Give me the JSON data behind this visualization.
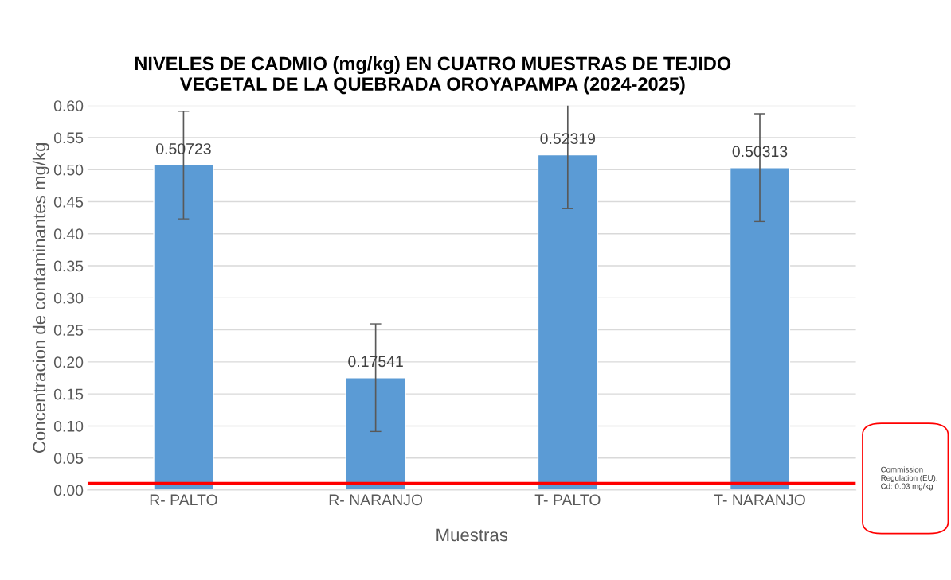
{
  "chart_data": {
    "type": "bar",
    "title": "NIVELES DE CADMIO (mg/kg) EN CUATRO MUESTRAS DE TEJIDO\nVEGETAL DE LA QUEBRADA OROYAPAMPA (2024-2025)",
    "xlabel": "Muestras",
    "ylabel": "Concentracion de contaminantes mg/kg",
    "categories": [
      "R- PALTO",
      "R- NARANJO",
      "T- PALTO",
      "T- NARANJO"
    ],
    "values": [
      0.50723,
      0.17541,
      0.52319,
      0.50313
    ],
    "errors": [
      0.084,
      0.084,
      0.084,
      0.084
    ],
    "color": "#5b9bd5",
    "data_labels": true,
    "ylim": [
      0,
      0.6
    ],
    "yticks": [
      {
        "value": 0,
        "label": "0.00"
      },
      {
        "value": 0.05,
        "label": "0.05"
      },
      {
        "value": 0.1,
        "label": "0.10"
      },
      {
        "value": 0.15,
        "label": "0.15"
      },
      {
        "value": 0.2,
        "label": "0.20"
      },
      {
        "value": 0.25,
        "label": "0.25"
      },
      {
        "value": 0.3,
        "label": "0.30"
      },
      {
        "value": 0.35,
        "label": "0.35"
      },
      {
        "value": 0.4,
        "label": "0.40"
      },
      {
        "value": 0.45,
        "label": "0.45"
      },
      {
        "value": 0.5,
        "label": "0.50"
      },
      {
        "value": 0.55,
        "label": "0.55"
      },
      {
        "value": 0.6,
        "label": "0.60"
      }
    ],
    "grid": "y",
    "annotations": [
      "Commission\nRegulation (EU).\nCd: 0.03 mg/kg"
    ],
    "ref_lines": [
      {
        "axis": "y",
        "value": 0.01,
        "color": "#ff0000",
        "line_style": "solid"
      }
    ]
  }
}
